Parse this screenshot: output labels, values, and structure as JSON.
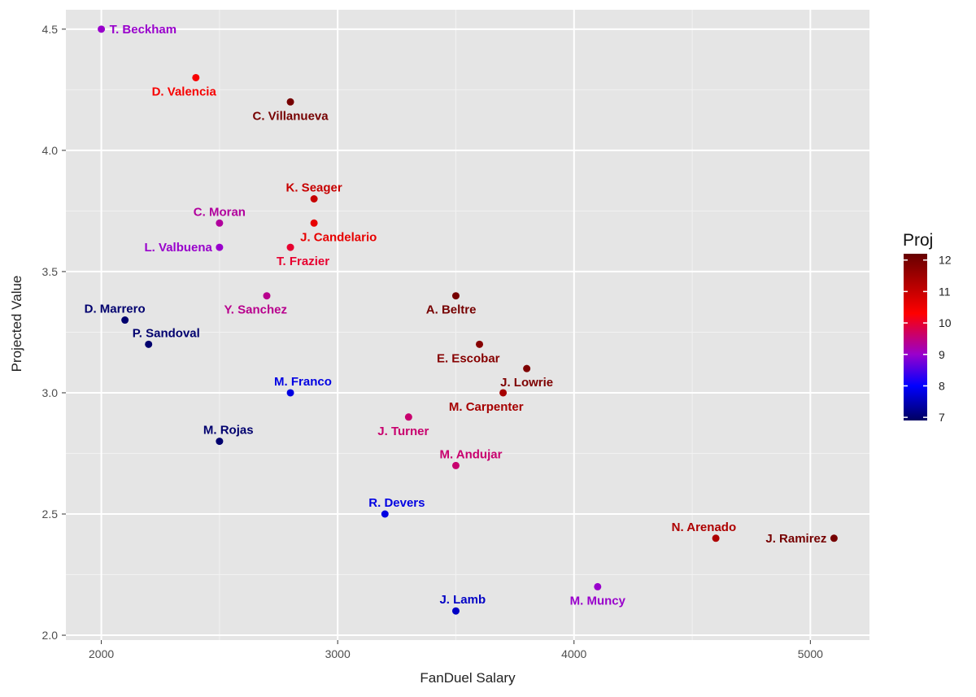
{
  "chart_data": {
    "type": "scatter",
    "xlabel": "FanDuel Salary",
    "ylabel": "Projected Value",
    "xlim": [
      1850,
      5250
    ],
    "ylim": [
      1.98,
      4.58
    ],
    "x_ticks": [
      2000,
      3000,
      4000,
      5000
    ],
    "x_tick_labels": [
      "2000",
      "3000",
      "4000",
      "5000"
    ],
    "y_ticks": [
      2.0,
      2.5,
      3.0,
      3.5,
      4.0,
      4.5
    ],
    "y_tick_labels": [
      "2.0",
      "2.5",
      "3.0",
      "3.5",
      "4.0",
      "4.5"
    ],
    "grid": true,
    "background": "#e5e5e5",
    "legend": {
      "title": "Proj",
      "placement": "right",
      "range": [
        6.9,
        12.2
      ],
      "ticks": [
        7,
        8,
        9,
        10,
        11,
        12
      ],
      "tick_labels": [
        "7",
        "8",
        "9",
        "10",
        "11",
        "12"
      ],
      "gradient": [
        {
          "value": 6.9,
          "color": "#000060"
        },
        {
          "value": 8.0,
          "color": "#0000ff"
        },
        {
          "value": 9.0,
          "color": "#9900cc"
        },
        {
          "value": 10.3,
          "color": "#ff0000"
        },
        {
          "value": 12.2,
          "color": "#660000"
        }
      ]
    },
    "points": [
      {
        "name": "T. Beckham",
        "x": 2000,
        "y": 4.5,
        "proj": 9.0,
        "label_pos": "right"
      },
      {
        "name": "D. Valencia",
        "x": 2400,
        "y": 4.3,
        "proj": 10.4,
        "label_pos": "below-left"
      },
      {
        "name": "C. Villanueva",
        "x": 2800,
        "y": 4.2,
        "proj": 12.0,
        "label_pos": "below"
      },
      {
        "name": "K. Seager",
        "x": 2900,
        "y": 3.8,
        "proj": 11.0,
        "label_pos": "above"
      },
      {
        "name": "J. Candelario",
        "x": 2900,
        "y": 3.7,
        "proj": 10.6,
        "label_pos": "below-right"
      },
      {
        "name": "T. Frazier",
        "x": 2800,
        "y": 3.6,
        "proj": 10.0,
        "label_pos": "below-right"
      },
      {
        "name": "C. Moran",
        "x": 2500,
        "y": 3.7,
        "proj": 9.3,
        "label_pos": "above"
      },
      {
        "name": "L. Valbuena",
        "x": 2500,
        "y": 3.6,
        "proj": 9.0,
        "label_pos": "left"
      },
      {
        "name": "Y. Sanchez",
        "x": 2700,
        "y": 3.4,
        "proj": 9.4,
        "label_pos": "below-left"
      },
      {
        "name": "D. Marrero",
        "x": 2100,
        "y": 3.3,
        "proj": 7.0,
        "label_pos": "above-left"
      },
      {
        "name": "P. Sandoval",
        "x": 2200,
        "y": 3.2,
        "proj": 7.0,
        "label_pos": "above-right"
      },
      {
        "name": "A. Beltre",
        "x": 3500,
        "y": 3.4,
        "proj": 12.0,
        "label_pos": "below-left"
      },
      {
        "name": "E. Escobar",
        "x": 3600,
        "y": 3.2,
        "proj": 11.8,
        "label_pos": "below-left"
      },
      {
        "name": "J. Lowrie",
        "x": 3800,
        "y": 3.1,
        "proj": 11.9,
        "label_pos": "below"
      },
      {
        "name": "M. Carpenter",
        "x": 3700,
        "y": 3.0,
        "proj": 11.4,
        "label_pos": "below-left"
      },
      {
        "name": "M. Franco",
        "x": 2800,
        "y": 3.0,
        "proj": 7.8,
        "label_pos": "above-right"
      },
      {
        "name": "J. Turner",
        "x": 3300,
        "y": 2.9,
        "proj": 9.6,
        "label_pos": "below-left"
      },
      {
        "name": "M. Rojas",
        "x": 2500,
        "y": 2.8,
        "proj": 7.0,
        "label_pos": "above-right"
      },
      {
        "name": "M. Andujar",
        "x": 3500,
        "y": 2.7,
        "proj": 9.6,
        "label_pos": "above-right"
      },
      {
        "name": "R. Devers",
        "x": 3200,
        "y": 2.5,
        "proj": 7.8,
        "label_pos": "above-right"
      },
      {
        "name": "N. Arenado",
        "x": 4600,
        "y": 2.4,
        "proj": 11.3,
        "label_pos": "above-left"
      },
      {
        "name": "J. Ramirez",
        "x": 5100,
        "y": 2.4,
        "proj": 12.0,
        "label_pos": "left"
      },
      {
        "name": "M. Muncy",
        "x": 4100,
        "y": 2.2,
        "proj": 9.0,
        "label_pos": "below"
      },
      {
        "name": "J. Lamb",
        "x": 3500,
        "y": 2.1,
        "proj": 7.6,
        "label_pos": "above-right"
      }
    ]
  }
}
